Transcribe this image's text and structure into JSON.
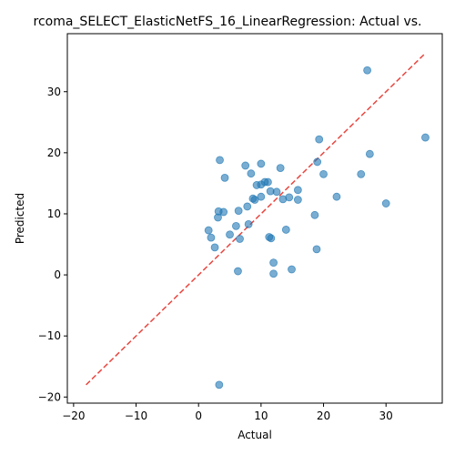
{
  "chart_data": {
    "type": "scatter",
    "title": "rcoma_SELECT_ElasticNetFS_16_LinearRegression: Actual vs.",
    "xlabel": "Actual",
    "ylabel": "Predicted",
    "xlim": [
      -21,
      39
    ],
    "ylim": [
      -21,
      39.5
    ],
    "xticks": [
      -20,
      -10,
      0,
      10,
      20,
      30
    ],
    "yticks": [
      -20,
      -10,
      0,
      10,
      20,
      30
    ],
    "grid": false,
    "point_color": "#1f77b4",
    "reference_line": {
      "from": [
        -18,
        -18
      ],
      "to": [
        36.3,
        36.3
      ],
      "color": "#e8463f",
      "style": "dashed"
    },
    "points": [
      {
        "x": 1.6,
        "y": 7.3
      },
      {
        "x": 2.0,
        "y": 6.1
      },
      {
        "x": 2.6,
        "y": 4.5
      },
      {
        "x": 3.1,
        "y": 9.4
      },
      {
        "x": 3.2,
        "y": 10.4
      },
      {
        "x": 3.4,
        "y": 18.8
      },
      {
        "x": 4.0,
        "y": 10.3
      },
      {
        "x": 4.2,
        "y": 15.9
      },
      {
        "x": 5.0,
        "y": 6.6
      },
      {
        "x": 6.0,
        "y": 8.0
      },
      {
        "x": 6.3,
        "y": 0.6
      },
      {
        "x": 6.4,
        "y": 10.5
      },
      {
        "x": 6.6,
        "y": 5.9
      },
      {
        "x": 7.5,
        "y": 17.9
      },
      {
        "x": 7.8,
        "y": 11.2
      },
      {
        "x": 8.0,
        "y": 8.3
      },
      {
        "x": 8.4,
        "y": 16.6
      },
      {
        "x": 8.7,
        "y": 12.5
      },
      {
        "x": 9.0,
        "y": 12.3
      },
      {
        "x": 9.3,
        "y": 14.7
      },
      {
        "x": 10.0,
        "y": 18.2
      },
      {
        "x": 10.0,
        "y": 14.8
      },
      {
        "x": 10.0,
        "y": 12.8
      },
      {
        "x": 10.6,
        "y": 15.2
      },
      {
        "x": 11.1,
        "y": 15.2
      },
      {
        "x": 11.3,
        "y": 6.2
      },
      {
        "x": 11.5,
        "y": 13.7
      },
      {
        "x": 11.6,
        "y": 6.0
      },
      {
        "x": 12.0,
        "y": 2.0
      },
      {
        "x": 12.0,
        "y": 0.2
      },
      {
        "x": 12.5,
        "y": 13.6
      },
      {
        "x": 13.1,
        "y": 17.5
      },
      {
        "x": 13.5,
        "y": 12.4
      },
      {
        "x": 14.0,
        "y": 7.4
      },
      {
        "x": 14.5,
        "y": 12.7
      },
      {
        "x": 14.9,
        "y": 0.9
      },
      {
        "x": 15.9,
        "y": 13.9
      },
      {
        "x": 15.9,
        "y": 12.3
      },
      {
        "x": 18.6,
        "y": 9.8
      },
      {
        "x": 18.9,
        "y": 4.2
      },
      {
        "x": 19.0,
        "y": 18.5
      },
      {
        "x": 19.3,
        "y": 22.2
      },
      {
        "x": 20.0,
        "y": 16.5
      },
      {
        "x": 22.1,
        "y": 12.8
      },
      {
        "x": 26.0,
        "y": 16.5
      },
      {
        "x": 27.0,
        "y": 33.5
      },
      {
        "x": 27.4,
        "y": 19.8
      },
      {
        "x": 30.0,
        "y": 11.7
      },
      {
        "x": 36.3,
        "y": 22.5
      },
      {
        "x": 3.3,
        "y": -18.0
      }
    ]
  }
}
